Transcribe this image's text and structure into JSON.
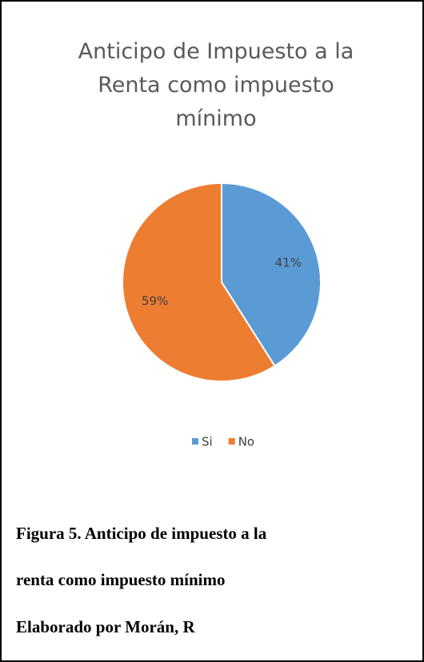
{
  "chart_data": {
    "type": "pie",
    "title": "Anticipo de Impuesto a la Renta como impuesto mínimo",
    "categories": [
      "Si",
      "No"
    ],
    "values": [
      41,
      59
    ],
    "value_labels": [
      "41%",
      "59%"
    ],
    "colors": [
      "#5b9bd5",
      "#ed7d31"
    ],
    "legend": "bottom"
  },
  "caption": "Figura 5. Anticipo de impuesto a la renta como impuesto mínimo",
  "credit": "Elaborado por Morán, R"
}
